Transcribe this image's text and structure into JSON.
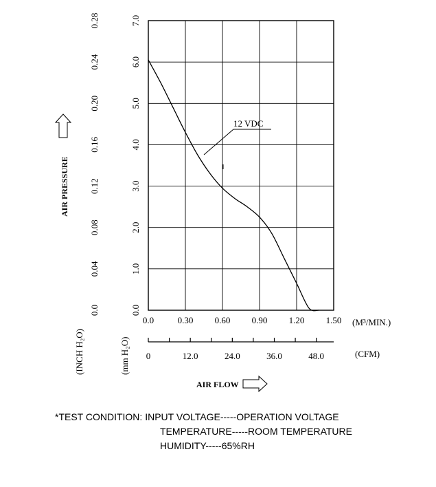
{
  "chart_data": {
    "type": "line",
    "x_primary_label": "(M³/MIN.)",
    "x_primary_ticks": [
      "0.0",
      "0.30",
      "0.60",
      "0.90",
      "1.20",
      "1.50"
    ],
    "x_primary_range": [
      0,
      1.5
    ],
    "x_secondary_label": "(CFM)",
    "x_secondary_ticks": [
      "0",
      "12.0",
      "24.0",
      "36.0",
      "48.0"
    ],
    "x_secondary_values": [
      0,
      12,
      24,
      36,
      48
    ],
    "y_mm_label": "(mm H₂O)",
    "y_mm_ticks": [
      "0.0",
      "1.0",
      "2.0",
      "3.0",
      "4.0",
      "5.0",
      "6.0",
      "7.0"
    ],
    "y_mm_range": [
      0,
      7
    ],
    "y_inch_label": "(INCH H₂O)",
    "y_inch_ticks": [
      "0.0",
      "0.04",
      "0.08",
      "0.12",
      "0.16",
      "0.20",
      "0.24",
      "0.28"
    ],
    "y_axis_title": "AIR PRESSURE",
    "x_axis_title": "AIR FLOW",
    "grid": true,
    "series": [
      {
        "name": "12 VDC",
        "x": [
          0.0,
          0.1,
          0.2,
          0.3,
          0.4,
          0.5,
          0.6,
          0.7,
          0.8,
          0.9,
          1.0,
          1.1,
          1.2,
          1.3,
          1.38
        ],
        "y": [
          6.05,
          5.5,
          4.9,
          4.3,
          3.75,
          3.3,
          2.95,
          2.7,
          2.5,
          2.25,
          1.85,
          1.25,
          0.65,
          0.05,
          0.0
        ]
      }
    ]
  },
  "footer": {
    "line1": "*TEST CONDITION: INPUT VOLTAGE-----OPERATION VOLTAGE",
    "line2": "TEMPERATURE-----ROOM TEMPERATURE",
    "line3": "HUMIDITY-----65%RH"
  }
}
